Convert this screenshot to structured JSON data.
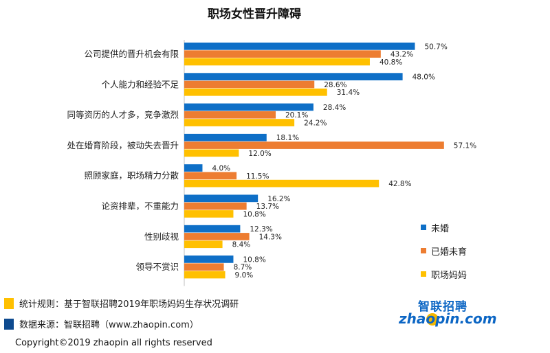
{
  "colors": {
    "unmarried": "#0e6fc7",
    "married_no_child": "#ed7d31",
    "working_mom": "#ffc000"
  },
  "chart_data": {
    "type": "bar",
    "orientation": "horizontal",
    "title": "职场女性晋升障碍",
    "xlim": [
      0,
      60
    ],
    "categories": [
      "公司提供的晋升机会有限",
      "个人能力和经验不足",
      "同等资历的人才多，竞争激烈",
      "处在婚育阶段，被动失去晋升",
      "照顾家庭，职场精力分散",
      "论资排辈，不重能力",
      "性别歧视",
      "领导不赏识"
    ],
    "series": [
      {
        "name": "未婚",
        "color": "#0e6fc7",
        "values": [
          50.7,
          48.0,
          28.4,
          18.1,
          4.0,
          16.2,
          12.3,
          10.8
        ]
      },
      {
        "name": "已婚未育",
        "color": "#ed7d31",
        "values": [
          43.2,
          28.6,
          20.1,
          57.1,
          11.5,
          13.7,
          14.3,
          8.7
        ]
      },
      {
        "name": "职场妈妈",
        "color": "#ffc000",
        "values": [
          40.8,
          31.4,
          24.2,
          12.0,
          42.8,
          10.8,
          8.4,
          9.0
        ]
      }
    ],
    "legend": "right",
    "grid": false
  },
  "notes": {
    "rule": "统计规则：基于智联招聘2019年职场妈妈生存状况调研",
    "source": "数据来源：智联招聘（www.zhaopin.com）"
  },
  "logo": {
    "cn": "智联招聘",
    "en": "zhaopin.com"
  },
  "copyright": "Copyright©2019 zhaopin all rights reserved"
}
